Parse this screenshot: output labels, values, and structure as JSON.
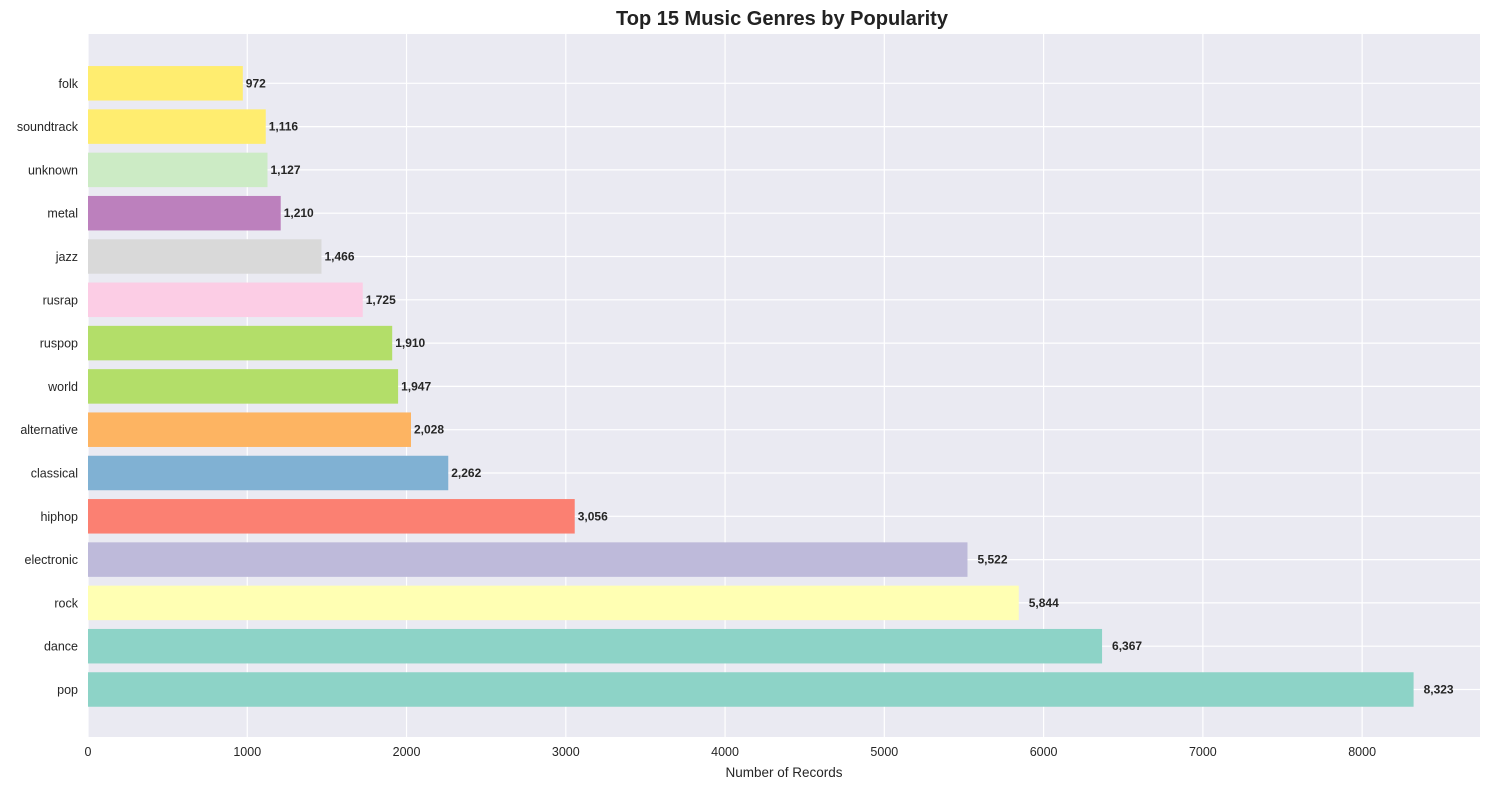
{
  "chart_data": {
    "type": "bar",
    "orientation": "horizontal",
    "title": "Top 15 Music Genres by Popularity",
    "xlabel": "Number of Records",
    "ylabel": "",
    "xlim": [
      0,
      8740
    ],
    "xticks": [
      0,
      1000,
      2000,
      3000,
      4000,
      5000,
      6000,
      7000,
      8000
    ],
    "grid": true,
    "background": "#eaeaf2",
    "grid_color": "#ffffff",
    "categories": [
      "pop",
      "dance",
      "rock",
      "electronic",
      "hiphop",
      "classical",
      "alternative",
      "world",
      "ruspop",
      "rusrap",
      "jazz",
      "metal",
      "unknown",
      "soundtrack",
      "folk"
    ],
    "values": [
      8323,
      6367,
      5844,
      5522,
      3056,
      2262,
      2028,
      1947,
      1910,
      1725,
      1466,
      1210,
      1127,
      1116,
      972
    ],
    "value_labels": [
      "8,323",
      "6,367",
      "5,844",
      "5,522",
      "3,056",
      "2,262",
      "2,028",
      "1,947",
      "1,910",
      "1,725",
      "1,466",
      "1,210",
      "1,127",
      "1,116",
      "972"
    ],
    "colors": [
      "#8dd3c7",
      "#8dd3c7",
      "#ffffb3",
      "#bebada",
      "#fb8072",
      "#80b1d3",
      "#fdb462",
      "#b3de69",
      "#b3de69",
      "#fccde5",
      "#d9d9d9",
      "#bc80bd",
      "#ccebc5",
      "#ffed6f",
      "#ffed6f"
    ]
  }
}
